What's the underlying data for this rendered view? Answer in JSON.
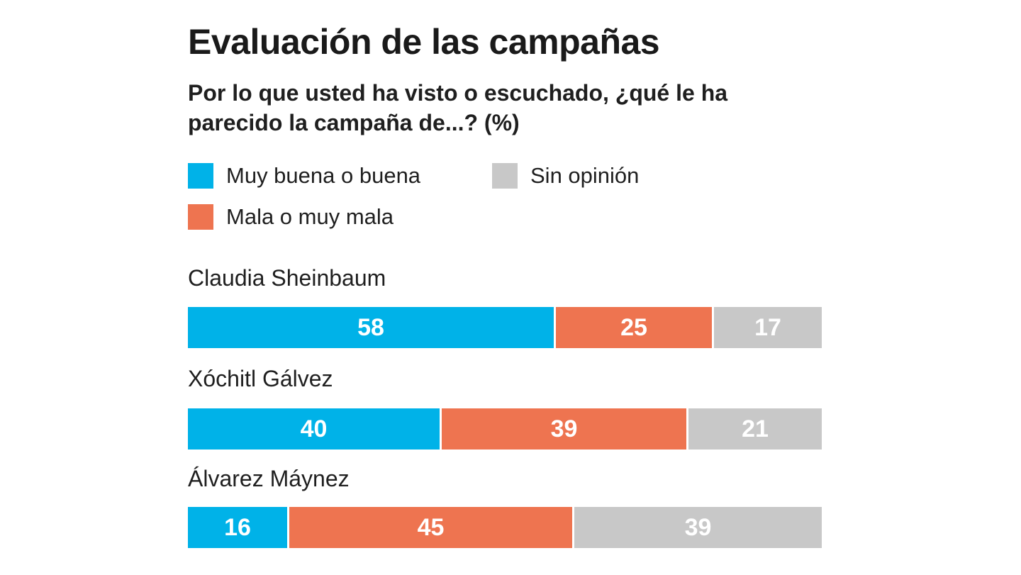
{
  "chart_data": {
    "type": "bar",
    "orientation": "horizontal",
    "stacked": true,
    "title": "Evaluación de las campañas",
    "subtitle": "Por lo que usted ha visto o escuchado, ¿qué le ha parecido la campaña de...? (%)",
    "categories": [
      "Claudia Sheinbaum",
      "Xóchitl Gálvez",
      "Álvarez Máynez"
    ],
    "series": [
      {
        "name": "Muy buena o buena",
        "color": "#00b2e8",
        "values": [
          58,
          40,
          16
        ]
      },
      {
        "name": "Mala o muy mala",
        "color": "#ee7450",
        "values": [
          25,
          39,
          45
        ]
      },
      {
        "name": "Sin opinión",
        "color": "#c8c8c8",
        "values": [
          17,
          21,
          39
        ]
      }
    ],
    "xlim": [
      0,
      100
    ],
    "grid": false,
    "legend_position": "top"
  }
}
